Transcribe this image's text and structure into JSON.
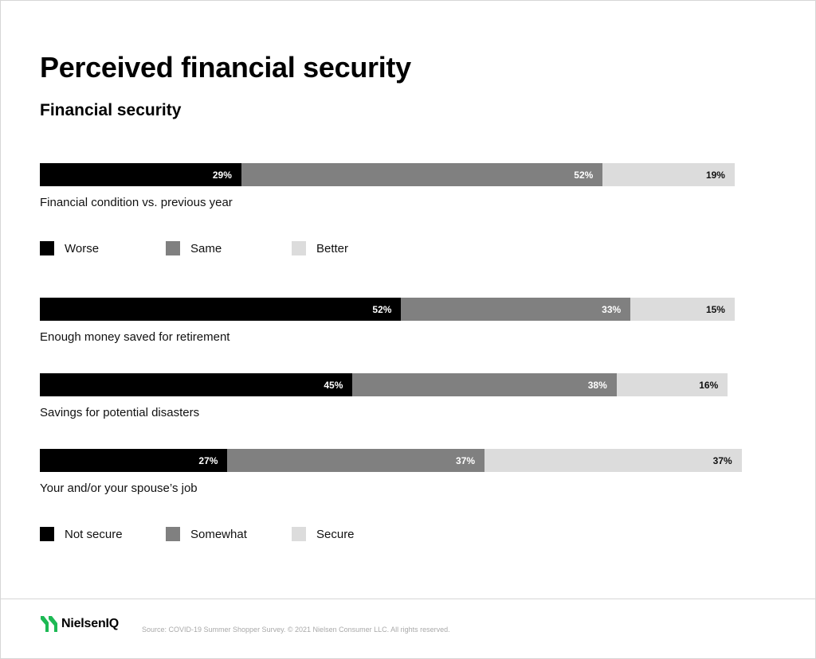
{
  "header": {
    "title": "Perceived financial security",
    "subtitle": "Financial security"
  },
  "chart_data": {
    "type": "bar",
    "orientation": "horizontal",
    "stacked": true,
    "title": "Perceived financial security",
    "subtitle": "Financial security",
    "groups": [
      {
        "legend": [
          "Worse",
          "Same",
          "Better"
        ],
        "rows": [
          {
            "label": "Financial condition vs. previous year",
            "values": [
              29,
              52,
              19
            ],
            "labels": [
              "29%",
              "52%",
              "19%"
            ]
          }
        ]
      },
      {
        "legend": [
          "Not secure",
          "Somewhat",
          "Secure"
        ],
        "rows": [
          {
            "label": "Enough money saved for retirement",
            "values": [
              52,
              33,
              15
            ],
            "labels": [
              "52%",
              "33%",
              "15%"
            ]
          },
          {
            "label": "Savings for potential disasters",
            "values": [
              45,
              38,
              16
            ],
            "labels": [
              "45%",
              "38%",
              "16%"
            ]
          },
          {
            "label": "Your and/or your spouse’s job",
            "values": [
              27,
              37,
              37
            ],
            "labels": [
              "27%",
              "37%",
              "37%"
            ]
          }
        ]
      }
    ],
    "colors": [
      "#000000",
      "#808080",
      "#dcdcdc"
    ],
    "grid": false,
    "legend_position": "below"
  },
  "footer": {
    "logo_text": "NielsenIQ",
    "logo_icon": "nielseniq-logo-icon",
    "source": "Source: COVID-19 Summer Shopper Survey. © 2021 Nielsen Consumer LLC. All rights reserved."
  }
}
